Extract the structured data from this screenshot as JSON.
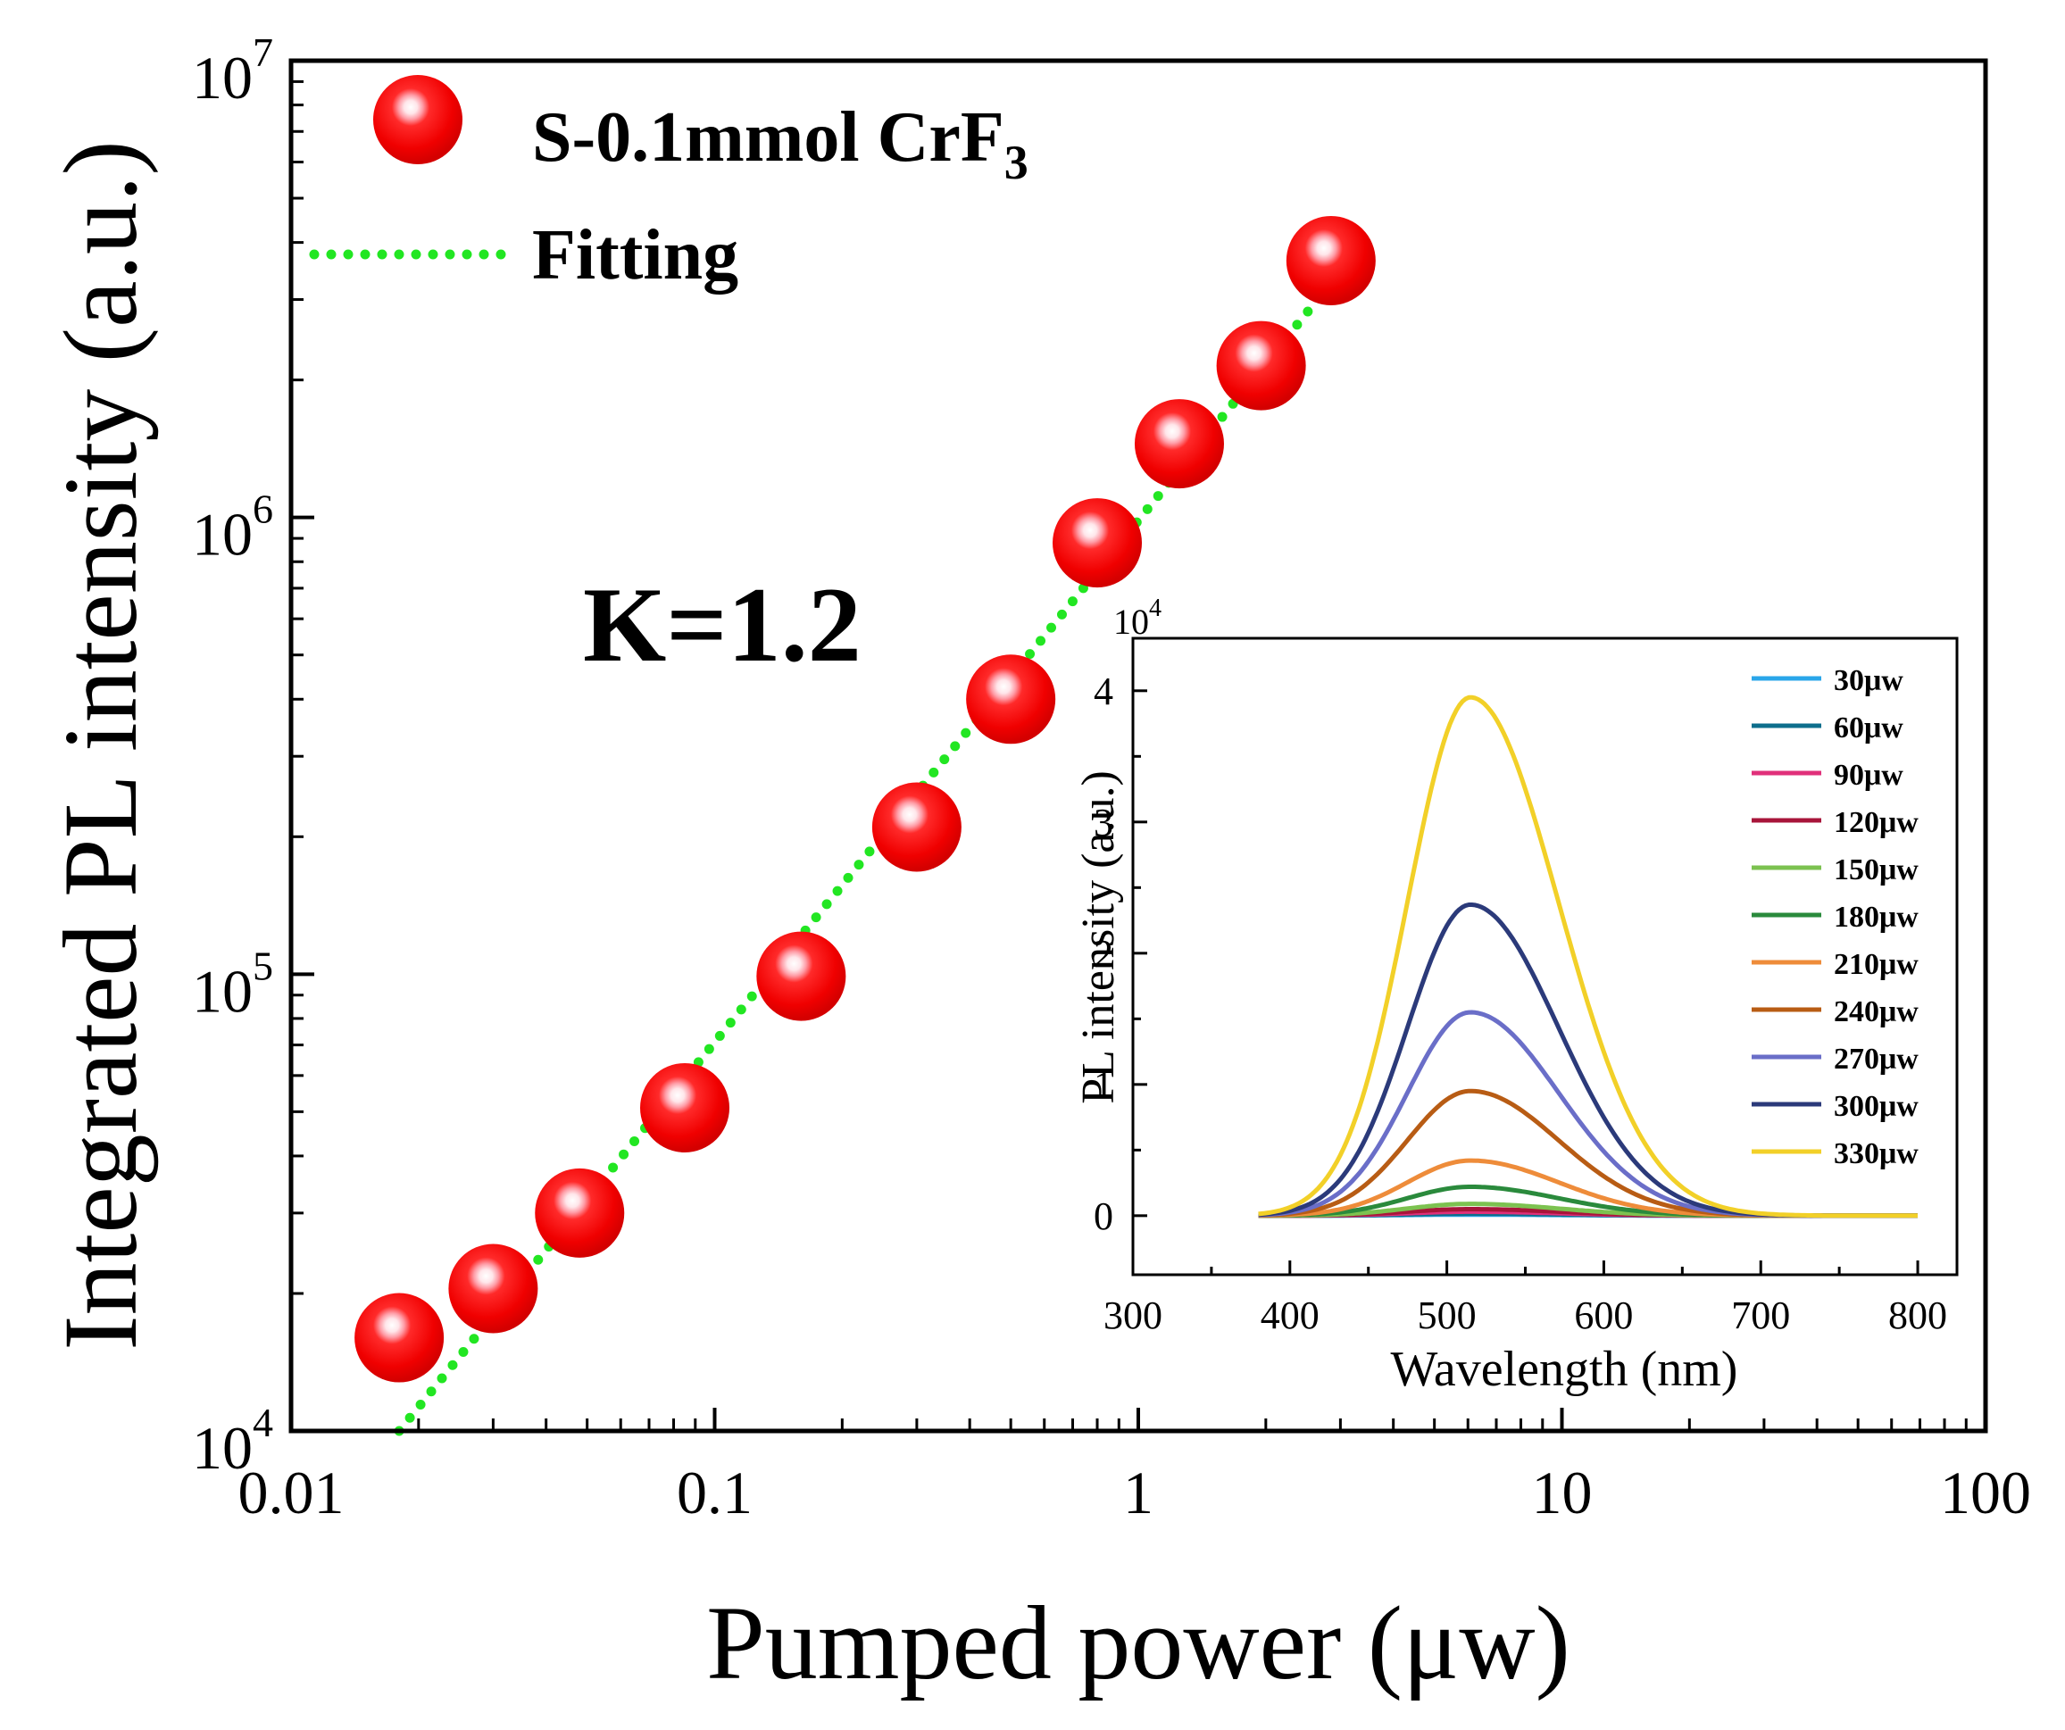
{
  "chart_data": [
    {
      "type": "scatter",
      "scale": "log-log",
      "title": "",
      "xlabel": "Pumped power (μw)",
      "ylabel": "Integrated PL intensity (a.u.)",
      "xlim": [
        0.01,
        100
      ],
      "ylim": [
        10000,
        10000000
      ],
      "x_ticks": [
        {
          "value": 0.01,
          "label": "0.01"
        },
        {
          "value": 0.1,
          "label": "0.1"
        },
        {
          "value": 1,
          "label": "1"
        },
        {
          "value": 10,
          "label": "10"
        },
        {
          "value": 100,
          "label": "100"
        }
      ],
      "y_ticks": [
        {
          "value": 10000,
          "base": "10",
          "exp": "4"
        },
        {
          "value": 100000,
          "base": "10",
          "exp": "5"
        },
        {
          "value": 1000000,
          "base": "10",
          "exp": "6"
        },
        {
          "value": 10000000,
          "base": "10",
          "exp": "7"
        }
      ],
      "series": [
        {
          "name": "S-0.1mmol CrF",
          "name_subscript": "3",
          "color": "#ff0000",
          "marker": "sphere",
          "x": [
            0.018,
            0.03,
            0.048,
            0.085,
            0.16,
            0.3,
            0.5,
            0.8,
            1.25,
            1.95,
            2.85
          ],
          "y": [
            16000,
            20500,
            30000,
            51000,
            99000,
            210000,
            400000,
            880000,
            1450000,
            2150000,
            3650000
          ]
        },
        {
          "name": "Fitting",
          "color": "#22e622",
          "style": "dotted",
          "x": [
            0.018,
            2.65
          ],
          "y": [
            10000,
            3000000
          ]
        }
      ],
      "annotation": "K=1.2",
      "legend_position": "top-left"
    },
    {
      "type": "line",
      "role": "inset",
      "xlabel": "Wavelength (nm)",
      "ylabel": "PL intensity (a.u.)",
      "y_multiplier": {
        "base": "10",
        "exp": "4"
      },
      "xlim": [
        300,
        825
      ],
      "ylim": [
        -0.45,
        4.4
      ],
      "x_ticks": [
        300,
        400,
        500,
        600,
        700,
        800
      ],
      "y_ticks": [
        0,
        1,
        2,
        3,
        4
      ],
      "peak_wavelength": 515,
      "wavelength_range": [
        380,
        800
      ],
      "legend_position": "top-right",
      "series": [
        {
          "name": "30μw",
          "peak": 0.008,
          "color": "#2aa6ea"
        },
        {
          "name": "60μw",
          "peak": 0.015,
          "color": "#0d6e8c"
        },
        {
          "name": "90μw",
          "peak": 0.03,
          "color": "#e0307a"
        },
        {
          "name": "120μw",
          "peak": 0.05,
          "color": "#a8153a"
        },
        {
          "name": "150μw",
          "peak": 0.09,
          "color": "#7cc250"
        },
        {
          "name": "180μw",
          "peak": 0.22,
          "color": "#2a8a3c"
        },
        {
          "name": "210μw",
          "peak": 0.42,
          "color": "#ee8c3a"
        },
        {
          "name": "240μw",
          "peak": 0.95,
          "color": "#b85c14"
        },
        {
          "name": "270μw",
          "peak": 1.55,
          "color": "#6a6ec8"
        },
        {
          "name": "300μw",
          "peak": 2.37,
          "color": "#2b3a7a"
        },
        {
          "name": "330μw",
          "peak": 3.95,
          "color": "#f2d028"
        }
      ]
    }
  ]
}
